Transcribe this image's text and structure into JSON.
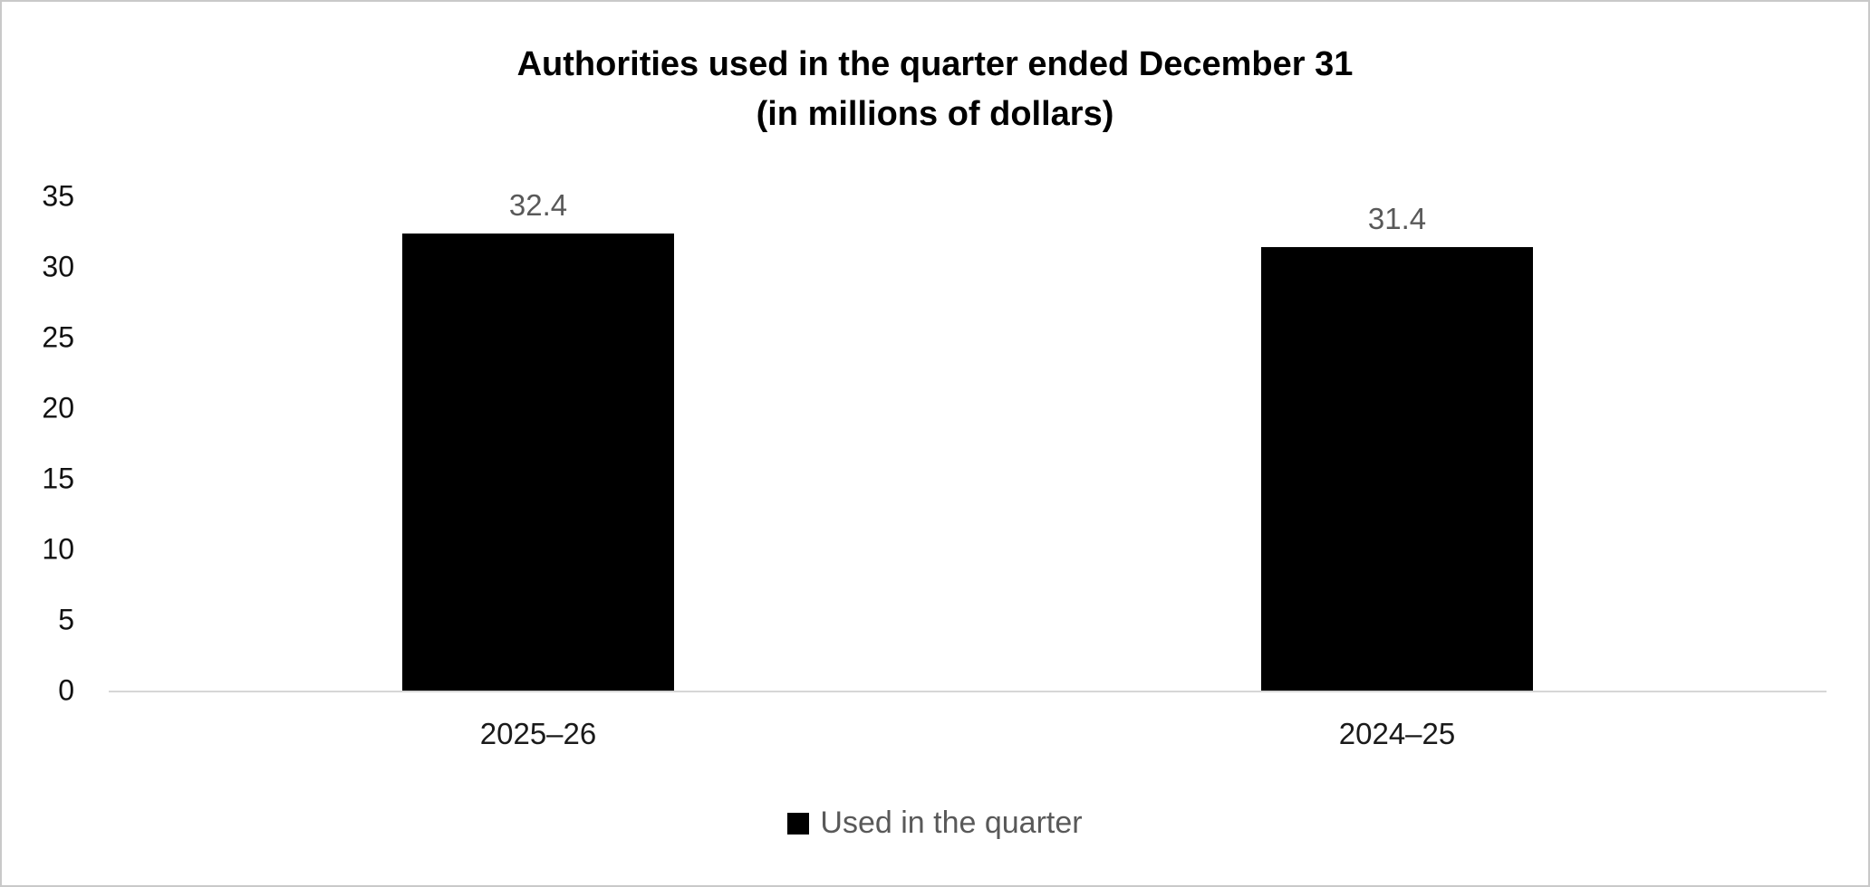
{
  "chart_data": {
    "type": "bar",
    "title_line1": "Authorities used in the quarter ended December 31",
    "title_line2": "(in millions of dollars)",
    "categories": [
      "2025–26",
      "2024–25"
    ],
    "series": [
      {
        "name": "Used in the quarter",
        "values": [
          32.4,
          31.4
        ]
      }
    ],
    "value_labels": [
      "32.4",
      "31.4"
    ],
    "ylim": [
      0,
      35
    ],
    "yticks": [
      0,
      5,
      10,
      15,
      20,
      25,
      30,
      35
    ],
    "bar_color": "#000000",
    "value_label_color": "#595959",
    "legend_position": "bottom",
    "grid": "off"
  }
}
